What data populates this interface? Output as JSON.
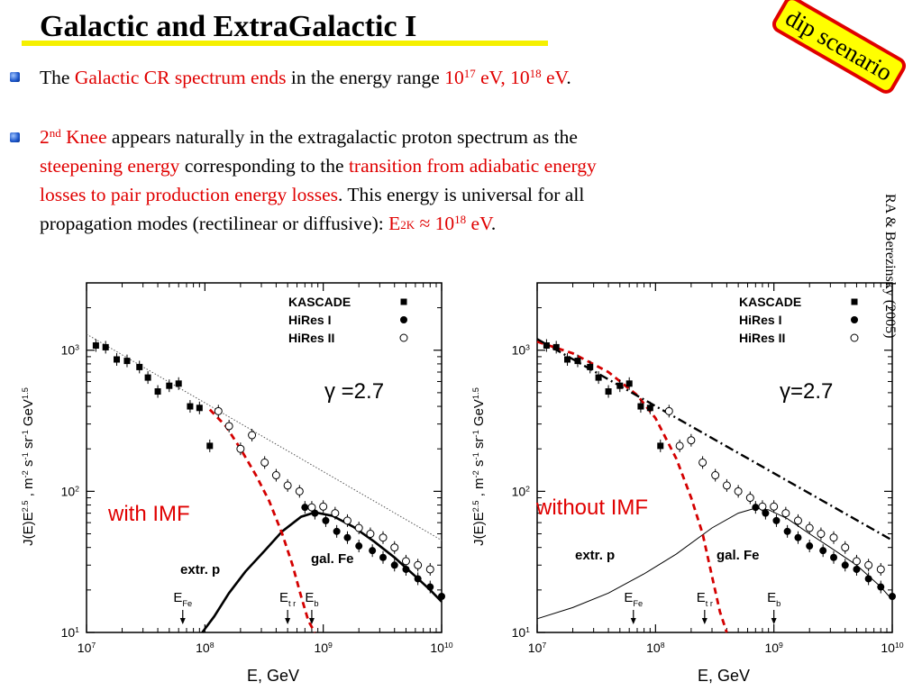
{
  "slide": {
    "title": "Galactic and ExtraGalactic I",
    "stamp": "dip scenario",
    "citation": "RA & Berezinsky  (2005)",
    "colors": {
      "highlight": "#e00000",
      "underline": "#f5f000",
      "stamp_fill": "#ffff00"
    }
  },
  "bullet1": {
    "t1": "The ",
    "t2": "Galactic CR spectrum ends",
    "t3": " in the energy range ",
    "t4_base": "10",
    "t4_exp": "17",
    "t5": " eV, ",
    "t6_base": "10",
    "t6_exp": "18",
    "t7": " eV",
    "t8": "."
  },
  "bullet2": {
    "l1_a_base": "2",
    "l1_a_sup": "nd",
    "l1_b": " Knee",
    "l1_c": " appears naturally in the extragalactic proton spectrum as the",
    "l2_a": "steepening energy",
    "l2_b": " corresponding to the ",
    "l2_c": "transition from adiabatic energy",
    "l3_a": "losses to pair production energy losses",
    "l3_b": ". This energy is universal for all",
    "l4_a": "propagation modes (rectilinear or diffusive): ",
    "l4_b": "E",
    "l4_b_sub": "2K",
    "l4_c": " ≈ 10",
    "l4_c_sup": "18",
    "l4_d": " eV",
    "l4_e": "."
  },
  "chart_data": [
    {
      "type": "scatter",
      "xlabel": "E, GeV",
      "ylabel": "J(E)E^2.5 , m^-2 s^-1 sr^-1 GeV^1.5",
      "x_scale": "log",
      "y_scale": "log",
      "xlim": [
        10000000.0,
        10000000000.0
      ],
      "ylim": [
        10,
        3000
      ],
      "x_ticks": [
        "10^7",
        "10^8",
        "10^9",
        "10^10"
      ],
      "y_ticks": [
        "10^1",
        "10^2",
        "10^3"
      ],
      "gamma_label": "γ =2.7",
      "imf_label": "with IMF",
      "legend": {
        "position": "top-right",
        "entries": [
          "KASCADE",
          "HiRes I",
          "HiRes II"
        ]
      },
      "annotations": [
        "extr. p",
        "gal. Fe"
      ],
      "markers": [
        {
          "label": "E",
          "sub": "Fe",
          "x": 65000000.0
        },
        {
          "label": "E",
          "sub": "t r",
          "x": 500000000.0
        },
        {
          "label": "E",
          "sub": "b",
          "x": 800000000.0
        }
      ],
      "series": [
        {
          "name": "KASCADE",
          "marker": "square",
          "x": [
            12000000.0,
            14500000.0,
            18000000.0,
            22000000.0,
            28000000.0,
            33000000.0,
            40000000.0,
            50000000.0,
            60000000.0,
            75000000.0,
            90000000.0,
            110000000.0
          ],
          "y": [
            1080,
            1050,
            860,
            840,
            760,
            640,
            510,
            560,
            580,
            400,
            390,
            210
          ]
        },
        {
          "name": "HiRes I",
          "marker": "circle",
          "x": [
            700000000.0,
            850000000.0,
            1050000000.0,
            1300000000.0,
            1600000000.0,
            2000000000.0,
            2600000000.0,
            3200000000.0,
            4000000000.0,
            5000000000.0,
            6300000000.0,
            8000000000.0,
            10000000000.0
          ],
          "y": [
            77,
            70,
            62,
            52,
            47,
            41,
            38,
            34,
            30,
            28,
            24,
            21,
            18
          ]
        },
        {
          "name": "HiRes II",
          "marker": "open-circle",
          "x": [
            130000000.0,
            160000000.0,
            200000000.0,
            250000000.0,
            320000000.0,
            400000000.0,
            500000000.0,
            630000000.0,
            800000000.0,
            1000000000.0,
            1260000000.0,
            1600000000.0,
            2000000000.0,
            2500000000.0,
            3200000000.0,
            4000000000.0,
            5000000000.0,
            6300000000.0,
            8000000000.0
          ],
          "y": [
            370,
            290,
            200,
            250,
            160,
            130,
            110,
            100,
            77,
            78,
            70,
            62,
            55,
            50,
            47,
            40,
            32,
            30,
            28
          ]
        }
      ],
      "curves": [
        {
          "name": "extr. p",
          "style": "solid-thick",
          "x": [
            95000000.0,
            120000000.0,
            160000000.0,
            220000000.0,
            320000000.0,
            450000000.0,
            650000000.0,
            850000000.0,
            1200000000.0,
            1800000000.0,
            2700000000.0,
            4000000000.0,
            6000000000.0,
            8000000000.0,
            10000000000.0
          ],
          "y": [
            10,
            13,
            19,
            27,
            38,
            52,
            66,
            71,
            67,
            56,
            44,
            34,
            25,
            20,
            16.5
          ]
        },
        {
          "name": "gal. Fe",
          "style": "dashed-red",
          "x": [
            110000000.0,
            150000000.0,
            200000000.0,
            270000000.0,
            350000000.0,
            450000000.0,
            550000000.0,
            650000000.0,
            750000000.0,
            850000000.0
          ],
          "y": [
            380,
            290,
            200,
            130,
            85,
            50,
            30,
            18,
            12,
            10
          ]
        },
        {
          "name": "power law",
          "style": "dotted",
          "x": [
            10000000.0,
            10000000000.0
          ],
          "y": [
            1300,
            45
          ]
        }
      ]
    },
    {
      "type": "scatter",
      "xlabel": "E, GeV",
      "ylabel": "J(E)E^2.5 , m^-2 s^-1 sr^-1 GeV^1.5",
      "x_scale": "log",
      "y_scale": "log",
      "xlim": [
        10000000.0,
        10000000000.0
      ],
      "ylim": [
        10,
        3000
      ],
      "x_ticks": [
        "10^7",
        "10^8",
        "10^9",
        "10^10"
      ],
      "y_ticks": [
        "10^1",
        "10^2",
        "10^3"
      ],
      "gamma_label": "γ=2.7",
      "imf_label": "without IMF",
      "legend": {
        "position": "top-right",
        "entries": [
          "KASCADE",
          "HiRes I",
          "HiRes II"
        ]
      },
      "annotations": [
        "extr. p",
        "gal. Fe"
      ],
      "markers": [
        {
          "label": "E",
          "sub": "Fe",
          "x": 65000000.0
        },
        {
          "label": "E",
          "sub": "t r",
          "x": 260000000.0
        },
        {
          "label": "E",
          "sub": "b",
          "x": 1000000000.0
        }
      ],
      "series": [
        {
          "name": "KASCADE",
          "marker": "square",
          "x": [
            12000000.0,
            14500000.0,
            18000000.0,
            22000000.0,
            28000000.0,
            33000000.0,
            40000000.0,
            50000000.0,
            60000000.0,
            75000000.0,
            90000000.0,
            110000000.0
          ],
          "y": [
            1080,
            1050,
            860,
            840,
            760,
            640,
            510,
            560,
            580,
            400,
            390,
            210
          ]
        },
        {
          "name": "HiRes I",
          "marker": "circle",
          "x": [
            700000000.0,
            850000000.0,
            1050000000.0,
            1300000000.0,
            1600000000.0,
            2000000000.0,
            2600000000.0,
            3200000000.0,
            4000000000.0,
            5000000000.0,
            6300000000.0,
            8000000000.0,
            10000000000.0
          ],
          "y": [
            77,
            70,
            62,
            52,
            47,
            41,
            38,
            34,
            30,
            28,
            24,
            21,
            18
          ]
        },
        {
          "name": "HiRes II",
          "marker": "open-circle",
          "x": [
            130000000.0,
            160000000.0,
            200000000.0,
            250000000.0,
            320000000.0,
            400000000.0,
            500000000.0,
            630000000.0,
            800000000.0,
            1000000000.0,
            1260000000.0,
            1600000000.0,
            2000000000.0,
            2500000000.0,
            3200000000.0,
            4000000000.0,
            5000000000.0,
            6300000000.0,
            8000000000.0
          ],
          "y": [
            370,
            210,
            230,
            160,
            130,
            110,
            100,
            90,
            78,
            78,
            70,
            62,
            55,
            50,
            47,
            40,
            32,
            30,
            28
          ]
        }
      ],
      "curves": [
        {
          "name": "extr. p",
          "style": "solid-thin",
          "x": [
            10000000.0,
            20000000.0,
            40000000.0,
            80000000.0,
            150000000.0,
            300000000.0,
            500000000.0,
            700000000.0,
            900000000.0,
            1300000000.0,
            2000000000.0,
            3000000000.0,
            5000000000.0,
            8000000000.0,
            10000000000.0
          ],
          "y": [
            12.5,
            15,
            19,
            26,
            36,
            55,
            70,
            76,
            74,
            64,
            50,
            40,
            30,
            21,
            17
          ]
        },
        {
          "name": "gal. Fe",
          "style": "dashed-red",
          "x": [
            10000000.0,
            20000000.0,
            40000000.0,
            70000000.0,
            100000000.0,
            150000000.0,
            200000000.0,
            250000000.0,
            300000000.0,
            350000000.0,
            400000000.0
          ],
          "y": [
            1150,
            950,
            700,
            480,
            330,
            170,
            90,
            50,
            25,
            14,
            10
          ]
        },
        {
          "name": "power law",
          "style": "dash-dot",
          "x": [
            10000000.0,
            10000000000.0
          ],
          "y": [
            1200,
            45
          ]
        }
      ]
    }
  ]
}
